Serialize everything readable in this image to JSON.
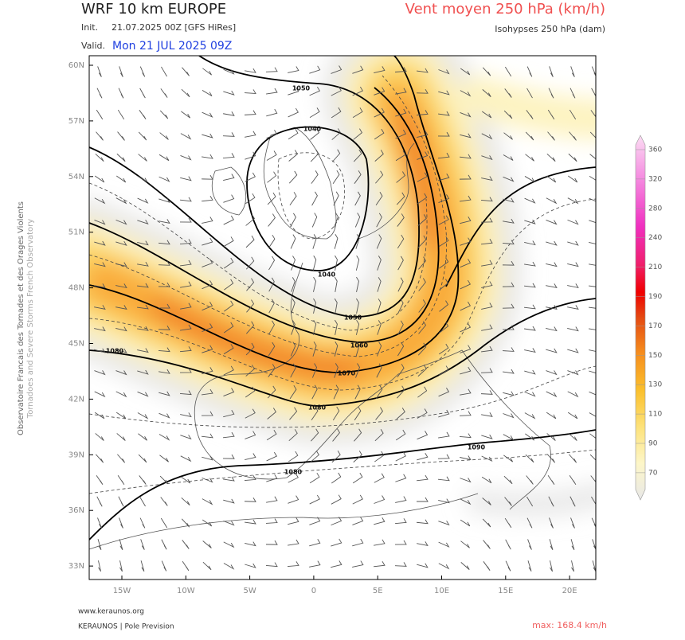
{
  "header": {
    "title": "WRF 10 km EUROPE",
    "init_label": "Init.",
    "init": "21.07.2025 00Z [GFS HiRes]",
    "valid_label": "Valid.",
    "valid": "Mon 21 JUL 2025 09Z",
    "product": "Vent moyen 250 hPa (km/h)",
    "subproduct": "Isohypses 250 hPa (dam)"
  },
  "map": {
    "lat_labels": [
      "60N",
      "57N",
      "54N",
      "51N",
      "48N",
      "45N",
      "42N",
      "39N",
      "36N",
      "33N"
    ],
    "lon_labels": [
      "15W",
      "10W",
      "5W",
      "0",
      "5E",
      "10E",
      "15E",
      "20E"
    ],
    "contour_labels": [
      "1050",
      "1040",
      "1040",
      "1050",
      "1060",
      "1070",
      "1080",
      "1080",
      "1090",
      "1080"
    ]
  },
  "colorbar": {
    "ticks": [
      360,
      320,
      280,
      240,
      210,
      190,
      170,
      150,
      130,
      110,
      90,
      70
    ]
  },
  "side": {
    "org": "Observatoire Francais des Tornades et des Orages Violents",
    "org_en": "Tornadoes and Severe Storms French Observatory"
  },
  "footer": {
    "url": "www.keraunos.org",
    "credit": "KERAUNOS | Pole Prevision",
    "max": "max: 168.4 km/h"
  }
}
